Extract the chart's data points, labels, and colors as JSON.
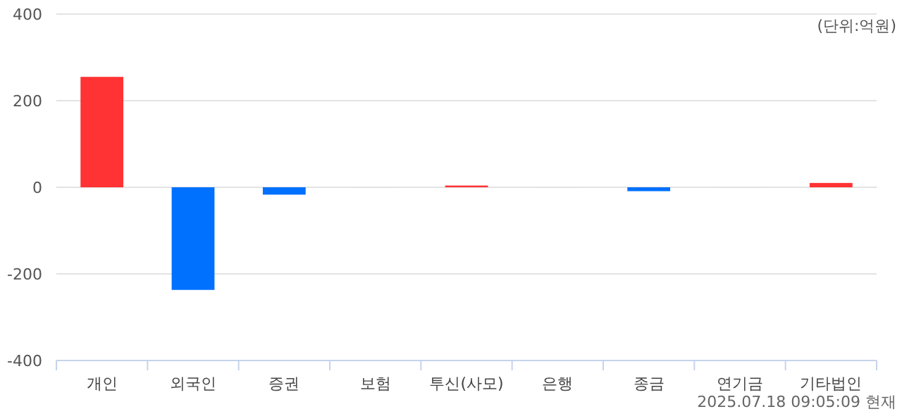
{
  "chart_data": {
    "type": "bar",
    "categories": [
      "개인",
      "외국인",
      "증권",
      "보험",
      "투신(사모)",
      "은행",
      "종금",
      "연기금",
      "기타법인"
    ],
    "values": [
      255,
      -237,
      -17,
      0,
      4,
      0,
      -9,
      0,
      10
    ],
    "colors": [
      "#ff3333",
      "#0070ff",
      "#0070ff",
      "#ff3333",
      "#ff3333",
      "#ff3333",
      "#0070ff",
      "#ff3333",
      "#ff3333"
    ],
    "ylim": [
      -400,
      400
    ],
    "yticks": [
      -400,
      -200,
      0,
      200,
      400
    ],
    "grid": "y",
    "annotations": [
      "(단위:억원)",
      "2025.07.18 09:05:09 현재"
    ]
  }
}
